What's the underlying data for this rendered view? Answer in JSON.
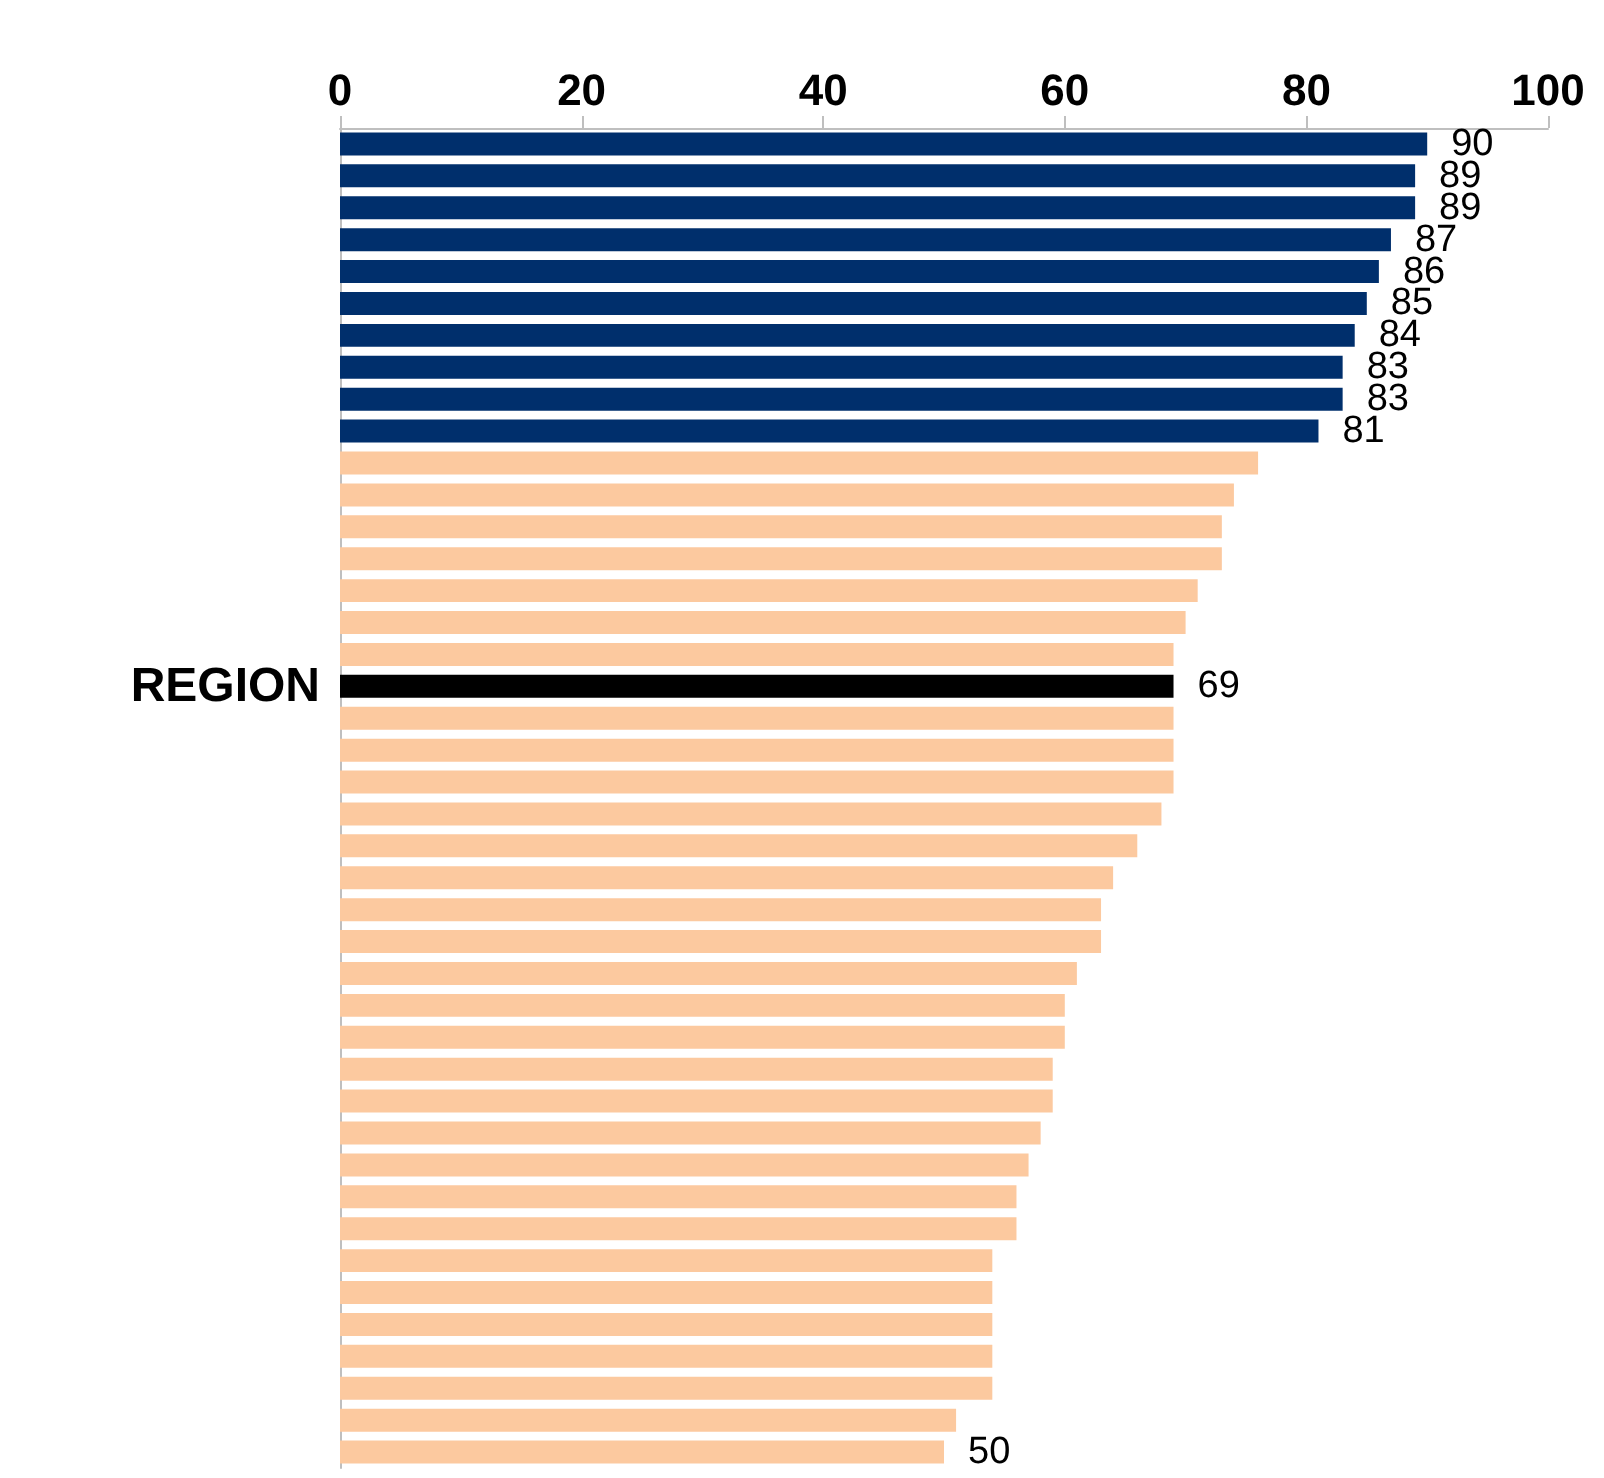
{
  "chart_data": {
    "type": "bar",
    "orientation": "horizontal",
    "categories": [
      null,
      null,
      null,
      null,
      null,
      null,
      null,
      null,
      null,
      null,
      null,
      null,
      null,
      null,
      null,
      null,
      null,
      "REGION",
      null,
      null,
      null,
      null,
      null,
      null,
      null,
      null,
      null,
      null,
      null,
      null,
      null,
      null,
      null,
      null,
      null,
      null,
      null,
      null,
      null,
      null,
      null,
      null
    ],
    "values": [
      90,
      89,
      89,
      87,
      86,
      85,
      84,
      83,
      83,
      81,
      76,
      74,
      73,
      73,
      71,
      70,
      69,
      69,
      69,
      69,
      69,
      68,
      66,
      64,
      63,
      63,
      61,
      60,
      60,
      59,
      59,
      58,
      57,
      56,
      56,
      54,
      54,
      54,
      54,
      54,
      51,
      50
    ],
    "colors": [
      "#002f6c",
      "#002f6c",
      "#002f6c",
      "#002f6c",
      "#002f6c",
      "#002f6c",
      "#002f6c",
      "#002f6c",
      "#002f6c",
      "#002f6c",
      "#fcc99f",
      "#fcc99f",
      "#fcc99f",
      "#fcc99f",
      "#fcc99f",
      "#fcc99f",
      "#fcc99f",
      "#000000",
      "#fcc99f",
      "#fcc99f",
      "#fcc99f",
      "#fcc99f",
      "#fcc99f",
      "#fcc99f",
      "#fcc99f",
      "#fcc99f",
      "#fcc99f",
      "#fcc99f",
      "#fcc99f",
      "#fcc99f",
      "#fcc99f",
      "#fcc99f",
      "#fcc99f",
      "#fcc99f",
      "#fcc99f",
      "#fcc99f",
      "#fcc99f",
      "#fcc99f",
      "#fcc99f",
      "#fcc99f",
      "#fcc99f",
      "#fcc99f"
    ],
    "value_labels": [
      "90",
      "89",
      "89",
      "87",
      "86",
      "85",
      "84",
      "83",
      "83",
      "81",
      null,
      null,
      null,
      null,
      null,
      null,
      null,
      "69",
      null,
      null,
      null,
      null,
      null,
      null,
      null,
      null,
      null,
      null,
      null,
      null,
      null,
      null,
      null,
      null,
      null,
      null,
      null,
      null,
      null,
      null,
      null,
      "50"
    ],
    "xlim": [
      0,
      100
    ],
    "xticks": [
      0,
      20,
      40,
      60,
      80,
      100
    ],
    "grid": false
  }
}
